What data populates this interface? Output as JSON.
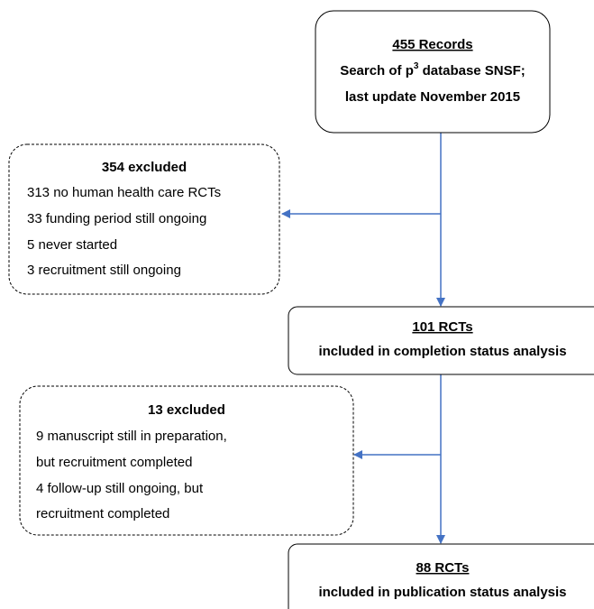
{
  "nodes": [
    {
      "title": "455 Records",
      "line1": [
        "Search of p",
        "3",
        " database SNSF;"
      ],
      "line2": "last update November 2015"
    },
    {
      "title": "354 excluded",
      "lines": [
        "313 no human health care RCTs",
        "33 funding period still ongoing",
        "5 never started",
        "3 recruitment still ongoing"
      ]
    },
    {
      "title": "101 RCTs",
      "lines": [
        "included in completion status analysis"
      ]
    },
    {
      "title": "13 excluded",
      "lines": [
        "9 manuscript still in preparation,",
        "but recruitment completed",
        "4 follow-up still ongoing, but",
        "recruitment completed"
      ]
    },
    {
      "title": "88 RCTs",
      "lines": [
        "included in publication status analysis"
      ]
    }
  ]
}
